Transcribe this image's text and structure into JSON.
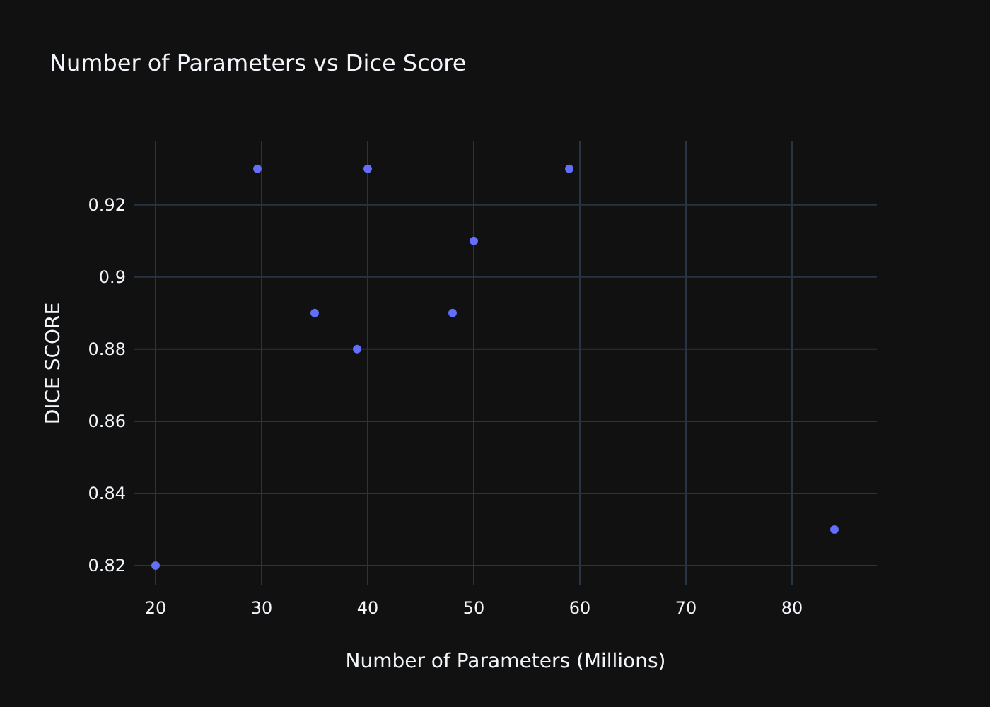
{
  "chart_data": {
    "type": "scatter",
    "title": "Number of Parameters vs Dice Score",
    "xlabel": "Number of Parameters (Millions)",
    "ylabel": "DICE SCORE",
    "x": [
      20,
      29.6,
      40,
      59,
      35,
      39,
      48,
      50,
      84
    ],
    "values": [
      0.82,
      0.93,
      0.93,
      0.93,
      0.89,
      0.88,
      0.89,
      0.91,
      0.83
    ],
    "color": "#636efa",
    "marker": "circle",
    "grid": true,
    "xlim": [
      18,
      88
    ],
    "xticks": [
      20,
      30,
      40,
      50,
      60,
      70,
      80
    ],
    "ylim": [
      0.8145,
      0.9376
    ],
    "yticks": [
      0.82,
      0.84,
      0.86,
      0.88,
      0.9,
      0.92
    ]
  }
}
